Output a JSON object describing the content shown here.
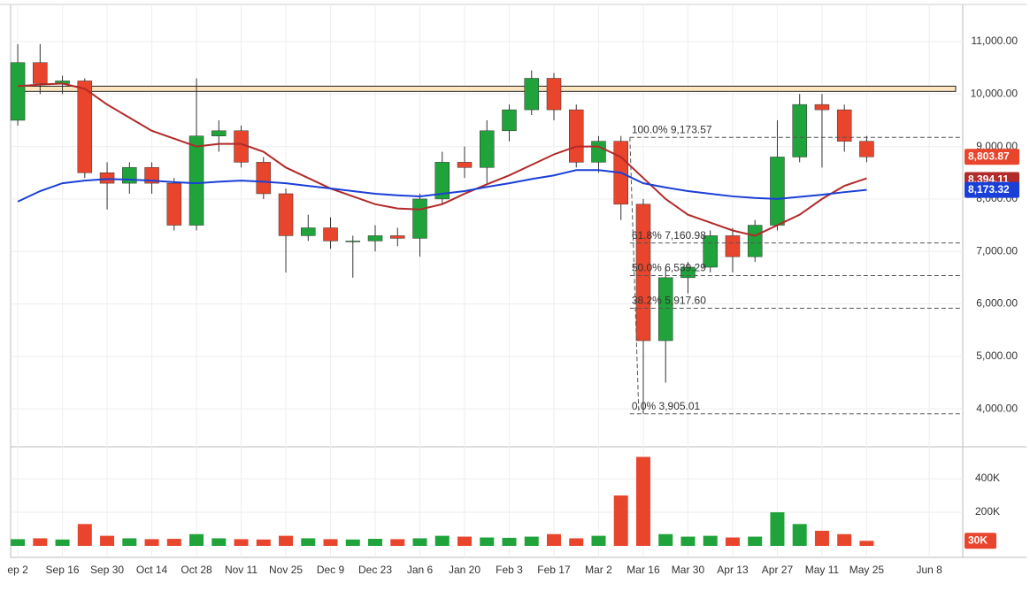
{
  "chart_data": {
    "type": "candlestick",
    "x": [
      0,
      5,
      10,
      15,
      20,
      25,
      30,
      35,
      40,
      45,
      50,
      55,
      60,
      65,
      70,
      75,
      80,
      85,
      90,
      95,
      100,
      105,
      110,
      115,
      120,
      125,
      130,
      135,
      140,
      145,
      150,
      155,
      160,
      165,
      170,
      175,
      180,
      185,
      190
    ],
    "open": [
      9500,
      10600,
      10200,
      10250,
      8500,
      8300,
      8600,
      8300,
      7500,
      9200,
      9300,
      8700,
      8100,
      7300,
      7450,
      7200,
      7200,
      7300,
      7250,
      8000,
      8700,
      8600,
      9300,
      9700,
      10300,
      9700,
      8700,
      9100,
      7900,
      5300,
      6500,
      6700,
      7300,
      6900,
      7500,
      8800,
      9800,
      9700,
      9100
    ],
    "high": [
      10950,
      10950,
      10350,
      10300,
      8700,
      8700,
      8700,
      8400,
      10300,
      9500,
      9400,
      8800,
      8200,
      7700,
      7650,
      7300,
      7500,
      7450,
      8100,
      8900,
      9000,
      9500,
      9800,
      10450,
      10400,
      9800,
      9200,
      9200,
      8000,
      6700,
      6800,
      7400,
      7450,
      7600,
      9500,
      10000,
      10000,
      9800,
      9200
    ],
    "low": [
      9400,
      10000,
      10000,
      8400,
      7800,
      8100,
      8100,
      7400,
      7400,
      8900,
      8600,
      8000,
      6600,
      7200,
      7050,
      6500,
      7000,
      7100,
      6900,
      7900,
      8400,
      8300,
      9100,
      9600,
      9500,
      8600,
      8500,
      7600,
      3905.01,
      4500,
      6200,
      6600,
      6600,
      6800,
      7400,
      8700,
      8600,
      8900,
      8700
    ],
    "close": [
      10600,
      10200,
      10250,
      8500,
      8300,
      8600,
      8300,
      7500,
      9200,
      9300,
      8700,
      8100,
      7300,
      7450,
      7200,
      7200,
      7300,
      7250,
      8000,
      8700,
      8600,
      9300,
      9700,
      10300,
      9700,
      8700,
      9100,
      7900,
      5300,
      6500,
      6700,
      7300,
      6900,
      7500,
      8800,
      9800,
      9700,
      9100,
      8803.87
    ],
    "last_label": "8,803.87",
    "volume": [
      40000,
      45000,
      38000,
      130000,
      60000,
      45000,
      40000,
      42000,
      70000,
      45000,
      40000,
      38000,
      60000,
      45000,
      40000,
      38000,
      42000,
      40000,
      45000,
      60000,
      55000,
      50000,
      48000,
      55000,
      70000,
      45000,
      60000,
      300000,
      530000,
      70000,
      55000,
      60000,
      50000,
      55000,
      200000,
      130000,
      90000,
      70000,
      30000
    ],
    "volume_last_label": "30K",
    "moving_averages": [
      {
        "color": "#b22a2a",
        "last_label": "8,394.11",
        "values": [
          10150,
          10180,
          10200,
          10100,
          9800,
          9550,
          9300,
          9150,
          9000,
          9050,
          9050,
          8900,
          8600,
          8400,
          8200,
          8050,
          7900,
          7820,
          7800,
          7900,
          8100,
          8280,
          8450,
          8650,
          8850,
          9000,
          9000,
          8800,
          8400,
          8000,
          7700,
          7550,
          7400,
          7300,
          7500,
          7700,
          8000,
          8250,
          8394.11
        ]
      },
      {
        "color": "#1a3fd6",
        "last_label": "8,173.32",
        "values": [
          7950,
          8150,
          8300,
          8350,
          8380,
          8370,
          8350,
          8320,
          8300,
          8330,
          8350,
          8330,
          8300,
          8250,
          8200,
          8150,
          8100,
          8070,
          8050,
          8100,
          8150,
          8230,
          8300,
          8380,
          8450,
          8550,
          8550,
          8500,
          8300,
          8220,
          8150,
          8100,
          8050,
          8020,
          8000,
          8040,
          8080,
          8130,
          8173.32
        ]
      }
    ],
    "zone": [
      10050,
      10150
    ],
    "fib_levels": [
      {
        "value": 9173.57,
        "label": "100.0% 9,173.57"
      },
      {
        "value": 7160.98,
        "label": "61.8% 7,160.98"
      },
      {
        "value": 6539.29,
        "label": "50.0% 6,539.29"
      },
      {
        "value": 5917.6,
        "label": "38.2% 5,917.60"
      },
      {
        "value": 3905.01,
        "label": "0.0% 3,905.01"
      }
    ],
    "xlim": [
      -1.6,
      211.5
    ],
    "xticks": [
      {
        "value": 0,
        "label": "ep 2"
      },
      {
        "value": 10,
        "label": "Sep 16"
      },
      {
        "value": 20,
        "label": "Sep 30"
      },
      {
        "value": 30,
        "label": "Oct 14"
      },
      {
        "value": 40,
        "label": "Oct 28"
      },
      {
        "value": 50,
        "label": "Nov 11"
      },
      {
        "value": 60,
        "label": "Nov 25"
      },
      {
        "value": 70,
        "label": "Dec 9"
      },
      {
        "value": 80,
        "label": "Dec 23"
      },
      {
        "value": 90,
        "label": "Jan 6"
      },
      {
        "value": 100,
        "label": "Jan 20"
      },
      {
        "value": 110,
        "label": "Feb 3"
      },
      {
        "value": 120,
        "label": "Feb 17"
      },
      {
        "value": 130,
        "label": "Mar 2"
      },
      {
        "value": 140,
        "label": "Mar 16"
      },
      {
        "value": 150,
        "label": "Mar 30"
      },
      {
        "value": 160,
        "label": "Apr 13"
      },
      {
        "value": 170,
        "label": "Apr 27"
      },
      {
        "value": 180,
        "label": "May 11"
      },
      {
        "value": 190,
        "label": "May 25"
      },
      {
        "value": 204,
        "label": "Jun 8"
      }
    ],
    "ylim": [
      3277,
      11708
    ],
    "yticks": [
      {
        "value": 4000,
        "label": "4,000.00"
      },
      {
        "value": 5000,
        "label": "5,000.00"
      },
      {
        "value": 6000,
        "label": "6,000.00"
      },
      {
        "value": 7000,
        "label": "7,000.00"
      },
      {
        "value": 8000,
        "label": "8,000.00"
      },
      {
        "value": 9000,
        "label": "9,000.00"
      },
      {
        "value": 10000,
        "label": "10,000.00"
      },
      {
        "value": 11000,
        "label": "11,000.00"
      }
    ],
    "volume_ylim": [
      0,
      590000
    ],
    "volume_yticks": [
      {
        "value": 200000,
        "label": "200K"
      },
      {
        "value": 400000,
        "label": "400K"
      }
    ],
    "up_color": "#1fa33a",
    "down_color": "#e8452c",
    "grid": true
  }
}
